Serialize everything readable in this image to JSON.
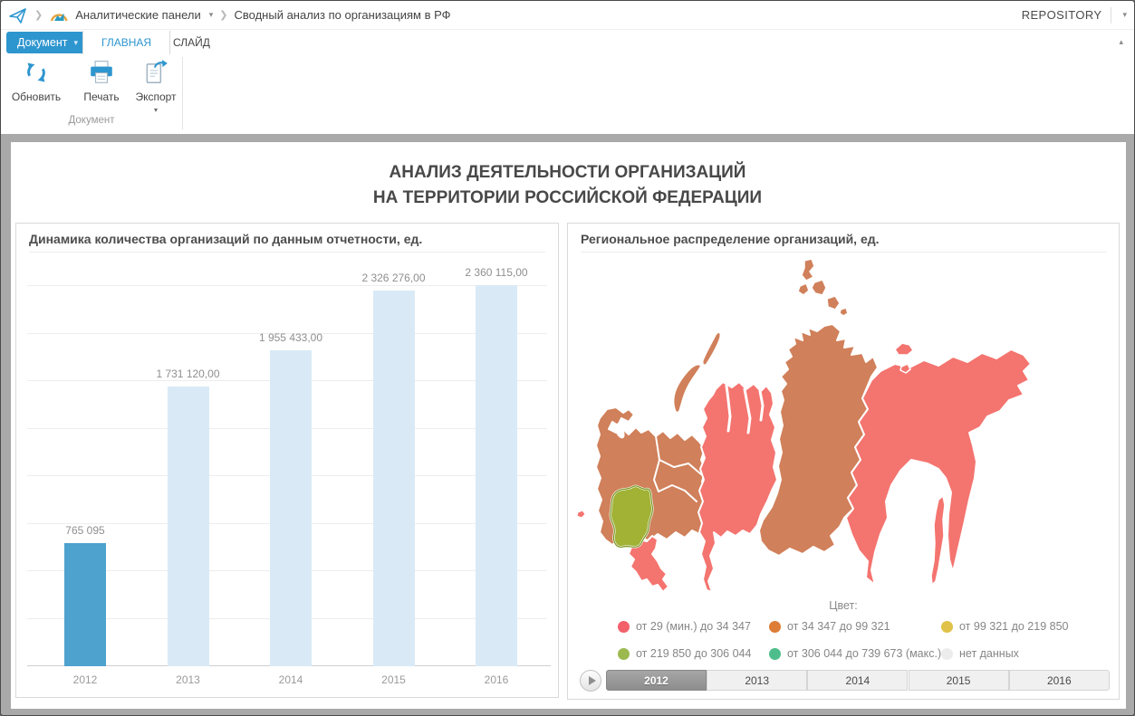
{
  "header": {
    "breadcrumb": {
      "items": [
        "Аналитические панели",
        "Сводный анализ по организациям в РФ"
      ],
      "icons": [
        "paper-plane-icon",
        "dashboard-panels-icon"
      ]
    },
    "repository_label": "REPOSITORY"
  },
  "ribbon": {
    "document_button": "Документ",
    "tabs": [
      "ГЛАВНАЯ",
      "СЛАЙД"
    ],
    "active_tab": "ГЛАВНАЯ",
    "actions": [
      {
        "label": "Обновить",
        "icon": "refresh-icon"
      },
      {
        "label": "Печать",
        "icon": "printer-icon"
      },
      {
        "label": "Экспорт",
        "icon": "export-icon",
        "has_dropdown": true
      }
    ],
    "group_label": "Документ",
    "accent_color": "#2e96cf"
  },
  "content": {
    "title_line1": "АНАЛИЗ ДЕЯТЕЛЬНОСТИ ОРГАНИЗАЦИЙ",
    "title_line2": "НА ТЕРРИТОРИИ РОССИЙСКОЙ ФЕДЕРАЦИИ"
  },
  "chart_data": [
    {
      "type": "bar",
      "title": "Динамика количества организаций по данным отчетности, ед.",
      "categories": [
        "2012",
        "2013",
        "2014",
        "2015",
        "2016"
      ],
      "values": [
        765095,
        1731120,
        1955433,
        2326276,
        2360115
      ],
      "value_labels": [
        "765 095",
        "1 731 120,00",
        "1 955 433,00",
        "2 326 276,00",
        "2 360 115,00"
      ],
      "highlight_index": 0,
      "bar_color_highlight": "#4da2ce",
      "bar_color_default": "#d9eaf6",
      "ylim": [
        0,
        2360115
      ],
      "grid": true,
      "gridline_count": 8
    },
    {
      "type": "choropleth-map",
      "title": "Региональное распределение организаций, ед.",
      "legend_title": "Цвет:",
      "legend": [
        {
          "label": "от 29 (мин.) до 34 347",
          "color": "#f2606a"
        },
        {
          "label": "от 34 347 до 99 321",
          "color": "#dd7d36"
        },
        {
          "label": "от 99 321 до 219 850",
          "color": "#e0c24a"
        },
        {
          "label": "от 219 850 до 306 044",
          "color": "#9cb950"
        },
        {
          "label": "от 306 044 до 739 673 (макс.)",
          "color": "#4dbd8b"
        },
        {
          "label": "нет данных",
          "color": "#ececec"
        }
      ],
      "map_region_colors": {
        "pink": "#f4746f",
        "orange": "#d0805a",
        "green": "#a1b235",
        "green_border": "#76941f"
      },
      "timeline": {
        "years": [
          "2012",
          "2013",
          "2014",
          "2015",
          "2016"
        ],
        "selected": "2012"
      }
    }
  ]
}
